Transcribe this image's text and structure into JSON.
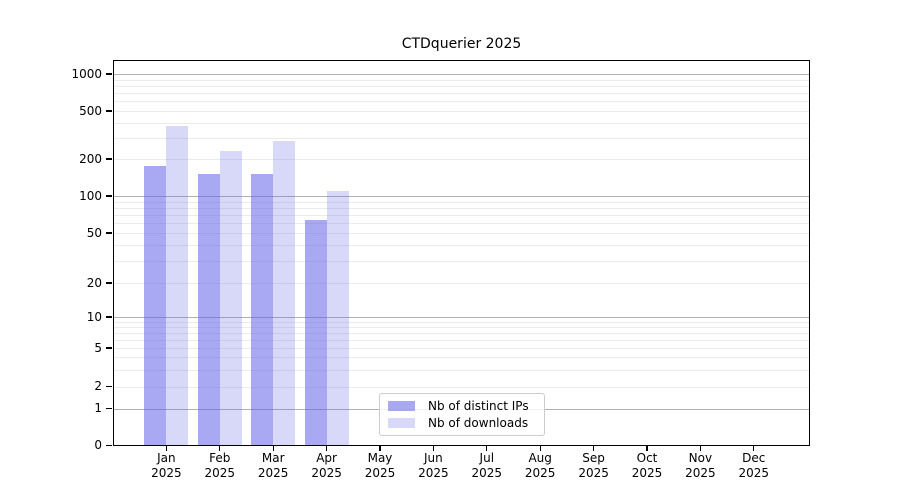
{
  "chart_data": {
    "type": "bar",
    "title": "CTDquerier 2025",
    "categories": [
      "Jan",
      "Feb",
      "Mar",
      "Apr",
      "May",
      "Jun",
      "Jul",
      "Aug",
      "Sep",
      "Oct",
      "Nov",
      "Dec"
    ],
    "x_tick_year": "2025",
    "series": [
      {
        "name": "Nb of distinct IPs",
        "key": "distinct-ips",
        "values": [
          175,
          152,
          150,
          64,
          0,
          0,
          0,
          0,
          0,
          0,
          0,
          0
        ],
        "color_rendered": "#a6a6f0",
        "rgba": "rgba(101,101,233,0.56)"
      },
      {
        "name": "Nb of downloads",
        "key": "downloads",
        "values": [
          375,
          235,
          283,
          110,
          0,
          0,
          0,
          0,
          0,
          0,
          0,
          0
        ],
        "color_rendered": "#d8d8f9",
        "rgba": "rgba(101,101,233,0.25)"
      }
    ],
    "yscale": "symlog",
    "yticks": [
      0,
      1,
      2,
      5,
      10,
      20,
      50,
      100,
      200,
      500,
      1000
    ],
    "ylim": [
      0,
      1150
    ],
    "xlabel": "",
    "ylabel": "",
    "grid": {
      "orientation": "horizontal",
      "major_color": "#b0b0b0",
      "minor_color": "#ebebeb"
    },
    "legend_position": "lower center",
    "frame_color": "#000000",
    "background_color": "#ffffff"
  },
  "legend": {
    "items": [
      {
        "label": "Nb of distinct IPs"
      },
      {
        "label": "Nb of downloads"
      }
    ]
  }
}
